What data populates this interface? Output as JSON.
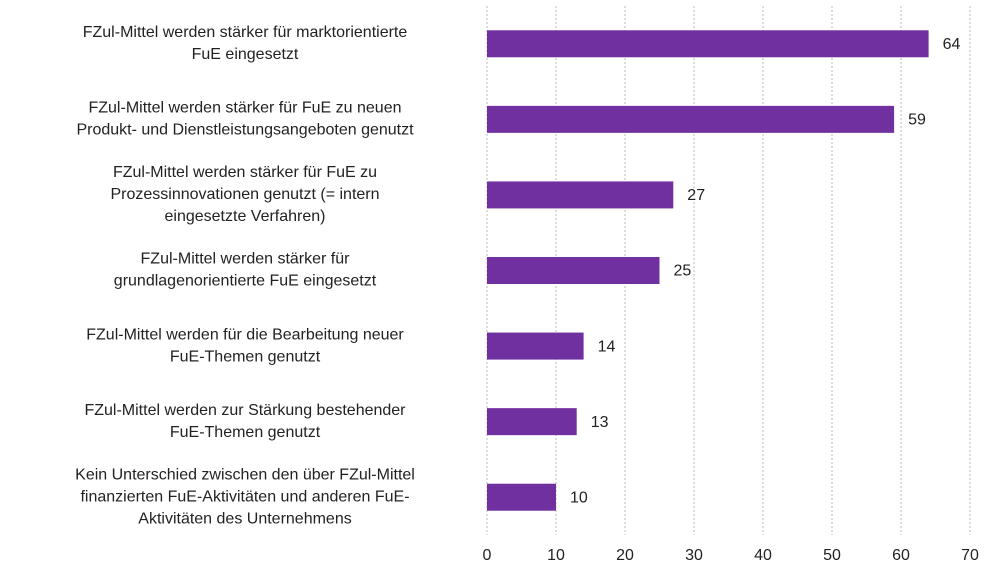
{
  "chart_data": {
    "type": "barh",
    "categories": [
      [
        "FZul-Mittel werden stärker für marktorientierte",
        "FuE eingesetzt"
      ],
      [
        "FZul-Mittel werden stärker für FuE zu neuen",
        "Produkt- und Dienstleistungsangeboten genutzt"
      ],
      [
        "FZul-Mittel werden stärker für FuE zu",
        "Prozessinnovationen genutzt (= intern",
        "eingesetzte Verfahren)"
      ],
      [
        "FZul-Mittel werden stärker für",
        "grundlagenorientierte FuE eingesetzt"
      ],
      [
        "FZul-Mittel werden für die Bearbeitung neuer",
        "FuE-Themen genutzt"
      ],
      [
        "FZul-Mittel werden zur Stärkung bestehender",
        "FuE-Themen genutzt"
      ],
      [
        "Kein Unterschied zwischen den über FZul-Mittel",
        "finanzierten FuE-Aktivitäten und anderen FuE-",
        "Aktivitäten des Unternehmens"
      ]
    ],
    "values": [
      64,
      59,
      27,
      25,
      14,
      13,
      10
    ],
    "color": "#7030a0",
    "xlim": [
      0,
      70
    ],
    "xticks": [
      0,
      10,
      20,
      30,
      40,
      50,
      60,
      70
    ],
    "grid": true
  }
}
